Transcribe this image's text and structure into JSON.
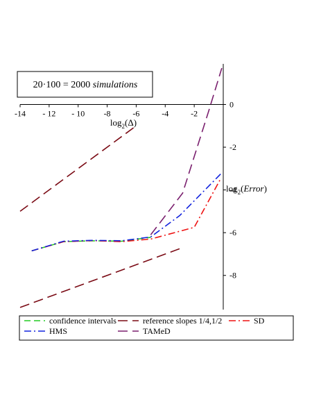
{
  "chart_data": {
    "type": "line",
    "title": "20·100 = 2000 simulations",
    "title_parts": {
      "prefix": "20·100 = 2000 ",
      "italic": "simulations"
    },
    "xlabel": {
      "prefix": "log",
      "sub": "2",
      "rest": "(Δ)"
    },
    "ylabel": {
      "prefix": "log",
      "sub": "2",
      "open": "(",
      "italic": "Error",
      "close": ")"
    },
    "xlim": [
      -14,
      0
    ],
    "ylim": [
      -9.6,
      1.9
    ],
    "x_axis_position": "top (y = 0)",
    "y_axis_position": "right (x = 0)",
    "x_ticks": [
      -14,
      -12,
      -10,
      -8,
      -6,
      -4,
      -2
    ],
    "x_tick_labels": [
      "-14",
      "- 12",
      "- 10",
      "-8",
      "-6",
      "-4",
      "-2"
    ],
    "y_ticks": [
      0,
      -2,
      -4,
      -6,
      -8
    ],
    "y_tick_labels": [
      "0",
      "-2",
      "-4",
      "-6",
      "-8"
    ],
    "grid": false,
    "legend_position": "bottom",
    "series": [
      {
        "name": "confidence intervals",
        "color": "#22cc22",
        "style": "dash",
        "x": [
          -13.2,
          -11.0,
          -9.0,
          -7.0,
          -5.0
        ],
        "y": [
          -6.85,
          -6.42,
          -6.38,
          -6.4,
          -6.22
        ]
      },
      {
        "name": "reference slopes 1/4,1/2",
        "color": "#7a0a14",
        "style": "longdash",
        "segments": [
          {
            "x": [
              -14,
              -6
            ],
            "y": [
              -5.0,
              -1.0
            ]
          },
          {
            "x": [
              -14,
              -3
            ],
            "y": [
              -9.5,
              -6.75
            ]
          }
        ]
      },
      {
        "name": "SD",
        "color": "#ee1111",
        "style": "dashdot",
        "x": [
          -13.2,
          -11.0,
          -9.0,
          -7.0,
          -5.0,
          -2.0,
          -0.2
        ],
        "y": [
          -6.85,
          -6.42,
          -6.37,
          -6.42,
          -6.3,
          -5.75,
          -3.5
        ]
      },
      {
        "name": "HMS",
        "color": "#1122dd",
        "style": "dashdot",
        "x": [
          -13.2,
          -11.0,
          -9.0,
          -7.0,
          -5.0,
          -3.0,
          -0.1
        ],
        "y": [
          -6.85,
          -6.4,
          -6.36,
          -6.38,
          -6.2,
          -5.2,
          -3.2
        ]
      },
      {
        "name": "TAMeD",
        "color": "#7a1f6e",
        "style": "longdash",
        "x": [
          -5.0,
          -2.8,
          -1.0,
          -0.1
        ],
        "y": [
          -6.1,
          -4.15,
          -0.3,
          1.7
        ]
      }
    ],
    "legend": [
      [
        "confidence intervals",
        "reference slopes 1/4,1/2",
        "SD"
      ],
      [
        "HMS",
        "TAMeD"
      ]
    ]
  }
}
